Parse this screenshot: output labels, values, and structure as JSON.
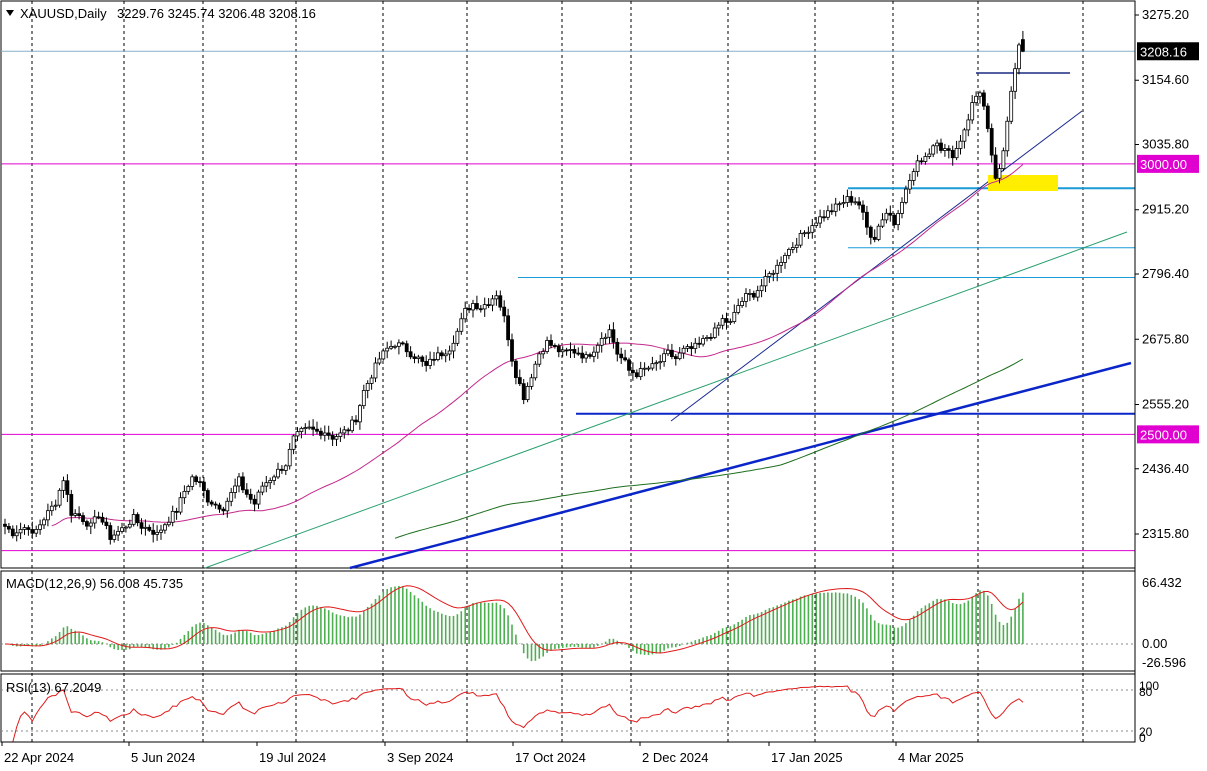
{
  "header": {
    "symbol": "XAUUSD,Daily",
    "ohlc": "3229.76 3245.74 3206.48 3208.16"
  },
  "macd_header": "MACD(12,26,9) 56.008 45.735",
  "rsi_header": "RSI(13) 67.2049",
  "price_badges": {
    "current": "3208.16",
    "level_3000": "3000.00",
    "level_2500": "2500.00"
  },
  "colors": {
    "candle_up": "#000000",
    "candle_body_up": "#ffffff",
    "candle_body_down": "#000000",
    "ma_fast": "#c4288c",
    "ma_slow": "#1e6e1e",
    "trend_thick": "#0a25c8",
    "level_magenta": "#e000d0",
    "level_cyan": "#1a9bd8",
    "macd_hist": "#4caf50",
    "macd_signal": "#e01a1a",
    "rsi_line": "#e01a1a",
    "highlight": "#ffee00"
  },
  "chart_data": [
    {
      "type": "candlestick",
      "symbol": "XAUUSD",
      "timeframe": "Daily",
      "ylim": [
        2260,
        3300
      ],
      "y_ticks": [
        "3275.20",
        "3154.60",
        "3035.80",
        "2915.20",
        "2796.40",
        "2675.80",
        "2555.20",
        "2436.40",
        "2315.80"
      ],
      "x_ticks": [
        "22 Apr 2024",
        "5 Jun 2024",
        "19 Jul 2024",
        "3 Sep 2024",
        "17 Oct 2024",
        "2 Dec 2024",
        "17 Jan 2025",
        "4 Mar 2025"
      ],
      "last": {
        "open": 3229.76,
        "high": 3245.74,
        "low": 3206.48,
        "close": 3208.16
      },
      "close_path": [
        [
          0,
          2330
        ],
        [
          2,
          2318
        ],
        [
          4,
          2325
        ],
        [
          6,
          2330
        ],
        [
          7,
          2312
        ],
        [
          10,
          2345
        ],
        [
          13,
          2375
        ],
        [
          15,
          2418
        ],
        [
          17,
          2355
        ],
        [
          19,
          2350
        ],
        [
          22,
          2330
        ],
        [
          24,
          2352
        ],
        [
          26,
          2325
        ],
        [
          27,
          2310
        ],
        [
          30,
          2325
        ],
        [
          33,
          2345
        ],
        [
          35,
          2330
        ],
        [
          37,
          2325
        ],
        [
          39,
          2315
        ],
        [
          41,
          2335
        ],
        [
          44,
          2360
        ],
        [
          46,
          2395
        ],
        [
          48,
          2420
        ],
        [
          50,
          2408
        ],
        [
          52,
          2380
        ],
        [
          54,
          2370
        ],
        [
          56,
          2365
        ],
        [
          58,
          2390
        ],
        [
          60,
          2415
        ],
        [
          61,
          2400
        ],
        [
          63,
          2380
        ],
        [
          64,
          2372
        ],
        [
          66,
          2405
        ],
        [
          68,
          2418
        ],
        [
          70,
          2432
        ],
        [
          72,
          2445
        ],
        [
          74,
          2492
        ],
        [
          76,
          2505
        ],
        [
          78,
          2510
        ],
        [
          80,
          2505
        ],
        [
          82,
          2505
        ],
        [
          84,
          2495
        ],
        [
          86,
          2500
        ],
        [
          88,
          2510
        ],
        [
          90,
          2530
        ],
        [
          92,
          2580
        ],
        [
          94,
          2610
        ],
        [
          96,
          2640
        ],
        [
          98,
          2658
        ],
        [
          100,
          2668
        ],
        [
          102,
          2662
        ],
        [
          104,
          2650
        ],
        [
          106,
          2640
        ],
        [
          107,
          2632
        ],
        [
          108,
          2625
        ],
        [
          110,
          2642
        ],
        [
          112,
          2650
        ],
        [
          114,
          2660
        ],
        [
          116,
          2690
        ],
        [
          118,
          2728
        ],
        [
          120,
          2742
        ],
        [
          122,
          2735
        ],
        [
          124,
          2745
        ],
        [
          126,
          2760
        ],
        [
          127,
          2738
        ],
        [
          128,
          2715
        ],
        [
          129,
          2680
        ],
        [
          130,
          2640
        ],
        [
          131,
          2612
        ],
        [
          132,
          2592
        ],
        [
          133,
          2570
        ],
        [
          135,
          2610
        ],
        [
          137,
          2650
        ],
        [
          139,
          2670
        ],
        [
          141,
          2660
        ],
        [
          143,
          2650
        ],
        [
          145,
          2655
        ],
        [
          147,
          2652
        ],
        [
          149,
          2642
        ],
        [
          151,
          2658
        ],
        [
          153,
          2680
        ],
        [
          155,
          2692
        ],
        [
          157,
          2650
        ],
        [
          159,
          2632
        ],
        [
          160,
          2618
        ],
        [
          162,
          2612
        ],
        [
          164,
          2620
        ],
        [
          166,
          2625
        ],
        [
          168,
          2635
        ],
        [
          170,
          2650
        ],
        [
          172,
          2640
        ],
        [
          174,
          2655
        ],
        [
          176,
          2658
        ],
        [
          178,
          2665
        ],
        [
          180,
          2680
        ],
        [
          182,
          2690
        ],
        [
          184,
          2712
        ],
        [
          186,
          2705
        ],
        [
          188,
          2738
        ],
        [
          190,
          2755
        ],
        [
          192,
          2760
        ],
        [
          194,
          2775
        ],
        [
          196,
          2795
        ],
        [
          198,
          2810
        ],
        [
          200,
          2835
        ],
        [
          202,
          2848
        ],
        [
          204,
          2865
        ],
        [
          206,
          2880
        ],
        [
          208,
          2895
        ],
        [
          210,
          2905
        ],
        [
          212,
          2915
        ],
        [
          214,
          2925
        ],
        [
          216,
          2935
        ],
        [
          218,
          2932
        ],
        [
          219,
          2925
        ],
        [
          220,
          2905
        ],
        [
          221,
          2882
        ],
        [
          222,
          2870
        ],
        [
          223,
          2865
        ],
        [
          224,
          2885
        ],
        [
          225,
          2900
        ],
        [
          226,
          2910
        ],
        [
          227,
          2905
        ],
        [
          228,
          2890
        ],
        [
          229,
          2915
        ],
        [
          230,
          2935
        ],
        [
          231,
          2950
        ],
        [
          232,
          2970
        ],
        [
          233,
          2985
        ],
        [
          234,
          3000
        ],
        [
          235,
          3010
        ],
        [
          236,
          3015
        ],
        [
          237,
          3022
        ],
        [
          238,
          3035
        ],
        [
          239,
          3045
        ],
        [
          240,
          3030
        ],
        [
          241,
          3025
        ],
        [
          242,
          3020
        ],
        [
          243,
          3018
        ],
        [
          244,
          3028
        ],
        [
          245,
          3045
        ],
        [
          246,
          3065
        ],
        [
          247,
          3085
        ],
        [
          248,
          3110
        ],
        [
          249,
          3125
        ],
        [
          250,
          3135
        ],
        [
          251,
          3105
        ],
        [
          252,
          3060
        ],
        [
          253,
          3010
        ],
        [
          254,
          2975
        ],
        [
          255,
          2985
        ],
        [
          256,
          3020
        ],
        [
          257,
          3080
        ],
        [
          258,
          3140
        ],
        [
          259,
          3180
        ],
        [
          260,
          3225
        ],
        [
          261,
          3208
        ]
      ],
      "overlays": {
        "horizontal_levels": [
          3208.16,
          3000.0,
          2500.0,
          2285.0
        ],
        "support_lines": [
          2955,
          2845,
          2790,
          2538
        ]
      }
    },
    {
      "type": "line",
      "name": "MACD(12,26,9)",
      "macd": 56.008,
      "signal": 45.735,
      "y_ticks": [
        "66.432",
        "0.00",
        "-26.596"
      ],
      "ylim": [
        -26.596,
        80
      ]
    },
    {
      "type": "line",
      "name": "RSI(13)",
      "value": 67.2049,
      "y_ticks": [
        "100",
        "80",
        "20",
        "0"
      ],
      "ylim": [
        0,
        100
      ]
    }
  ]
}
